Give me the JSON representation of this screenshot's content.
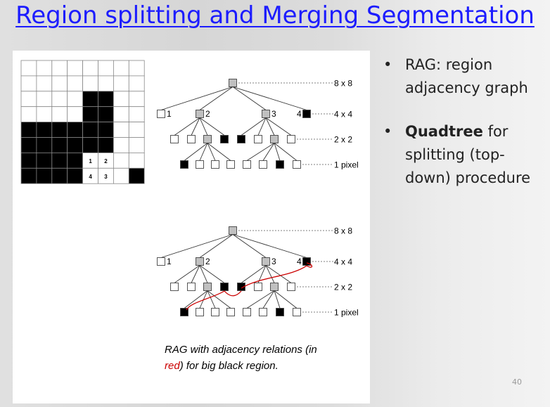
{
  "title": "Region splitting and Merging Segmentation",
  "grid": {
    "rows": 8,
    "cols": 8,
    "black_cells": [
      [
        2,
        4
      ],
      [
        2,
        5
      ],
      [
        3,
        4
      ],
      [
        3,
        5
      ],
      [
        4,
        0
      ],
      [
        4,
        1
      ],
      [
        4,
        2
      ],
      [
        4,
        3
      ],
      [
        4,
        4
      ],
      [
        4,
        5
      ],
      [
        5,
        0
      ],
      [
        5,
        1
      ],
      [
        5,
        2
      ],
      [
        5,
        3
      ],
      [
        5,
        4
      ],
      [
        5,
        5
      ],
      [
        6,
        0
      ],
      [
        6,
        1
      ],
      [
        6,
        2
      ],
      [
        6,
        3
      ],
      [
        7,
        0
      ],
      [
        7,
        1
      ],
      [
        7,
        2
      ],
      [
        7,
        3
      ],
      [
        7,
        7
      ]
    ],
    "cell_labels": [
      "1",
      "2",
      "4",
      "3"
    ]
  },
  "tree1": {
    "level_labels": [
      "8 x 8",
      "4 x 4",
      "2 x 2",
      "1 pixel"
    ],
    "quad_labels": [
      "1",
      "2",
      "3",
      "4"
    ]
  },
  "tree2": {
    "level_labels": [
      "8 x 8",
      "4 x 4",
      "2 x 2",
      "1 pixel"
    ],
    "quad_labels": [
      "1",
      "2",
      "3",
      "4"
    ]
  },
  "caption": {
    "part1": "RAG with adjacency relations (in",
    "red_word": "red",
    "part2": ") for big black region."
  },
  "bullets": [
    {
      "bold": "",
      "text": "RAG: region adjacency graph"
    },
    {
      "bold": "Quadtree",
      "text": " for splitting (top-down) procedure"
    }
  ],
  "page_number": "40",
  "colors": {
    "title": "#1c1cff",
    "gray_node": "#c0c0c0",
    "black_node": "#000000",
    "rag_edge": "#cc0000"
  }
}
